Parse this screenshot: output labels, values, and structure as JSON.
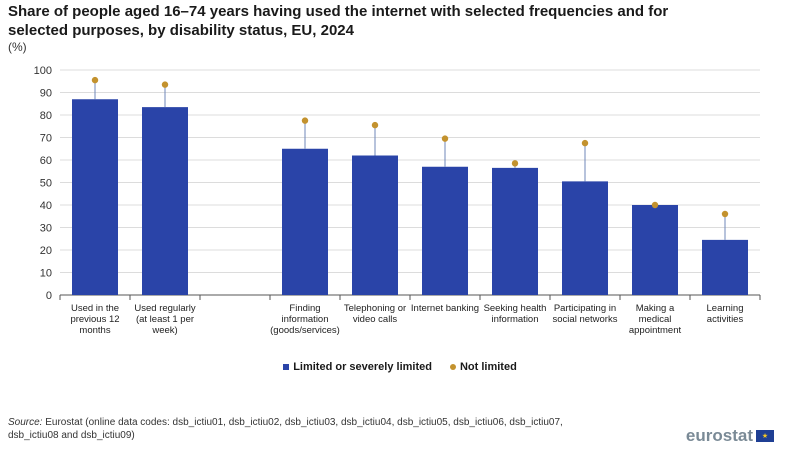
{
  "title": "Share of people aged 16–74 years having used the internet with selected frequencies and for selected purposes, by disability status, EU, 2024",
  "unit": "(%)",
  "chart_data": {
    "type": "bar",
    "categories": [
      [
        "Used in the",
        "previous 12",
        "months"
      ],
      [
        "Used regularly",
        "(at least 1 per",
        "week)"
      ],
      [],
      [
        "Finding",
        "information",
        "(goods/services)"
      ],
      [
        "Telephoning or",
        "video calls"
      ],
      [
        "Internet banking"
      ],
      [
        "Seeking health",
        "information"
      ],
      [
        "Participating in",
        "social networks"
      ],
      [
        "Making a",
        "medical",
        "appointment"
      ],
      [
        "Learning",
        "activities"
      ]
    ],
    "series": [
      {
        "name": "Limited or severely limited",
        "marker": "bar",
        "values": [
          87,
          83.5,
          null,
          65,
          62,
          57,
          56.5,
          50.5,
          40,
          24.5
        ]
      },
      {
        "name": "Not limited",
        "marker": "dot",
        "values": [
          95.5,
          93.5,
          null,
          77.5,
          75.5,
          69.5,
          58.5,
          67.5,
          40,
          36
        ]
      }
    ],
    "ylim": [
      0,
      100
    ],
    "yticks": [
      0,
      10,
      20,
      30,
      40,
      50,
      60,
      70,
      80,
      90,
      100
    ],
    "grid": true
  },
  "legend": {
    "items": [
      {
        "label": "Limited or severely limited",
        "color": "#2a44a8"
      },
      {
        "label": "Not limited",
        "color": "#c3922e"
      }
    ]
  },
  "colors": {
    "bar": "#2a44a8",
    "dot": "#c3922e",
    "connector": "#6f87b8",
    "grid": "#dcdcdc"
  },
  "source": {
    "label": "Source:",
    "text": "Eurostat (online data codes: dsb_ictiu01, dsb_ictiu02, dsb_ictiu03, dsb_ictiu04, dsb_ictiu05, dsb_ictiu06, dsb_ictiu07, dsb_ictiu08 and dsb_ictiu09)"
  },
  "logo": {
    "text": "eurostat",
    "icon": "eu-flag-icon"
  }
}
